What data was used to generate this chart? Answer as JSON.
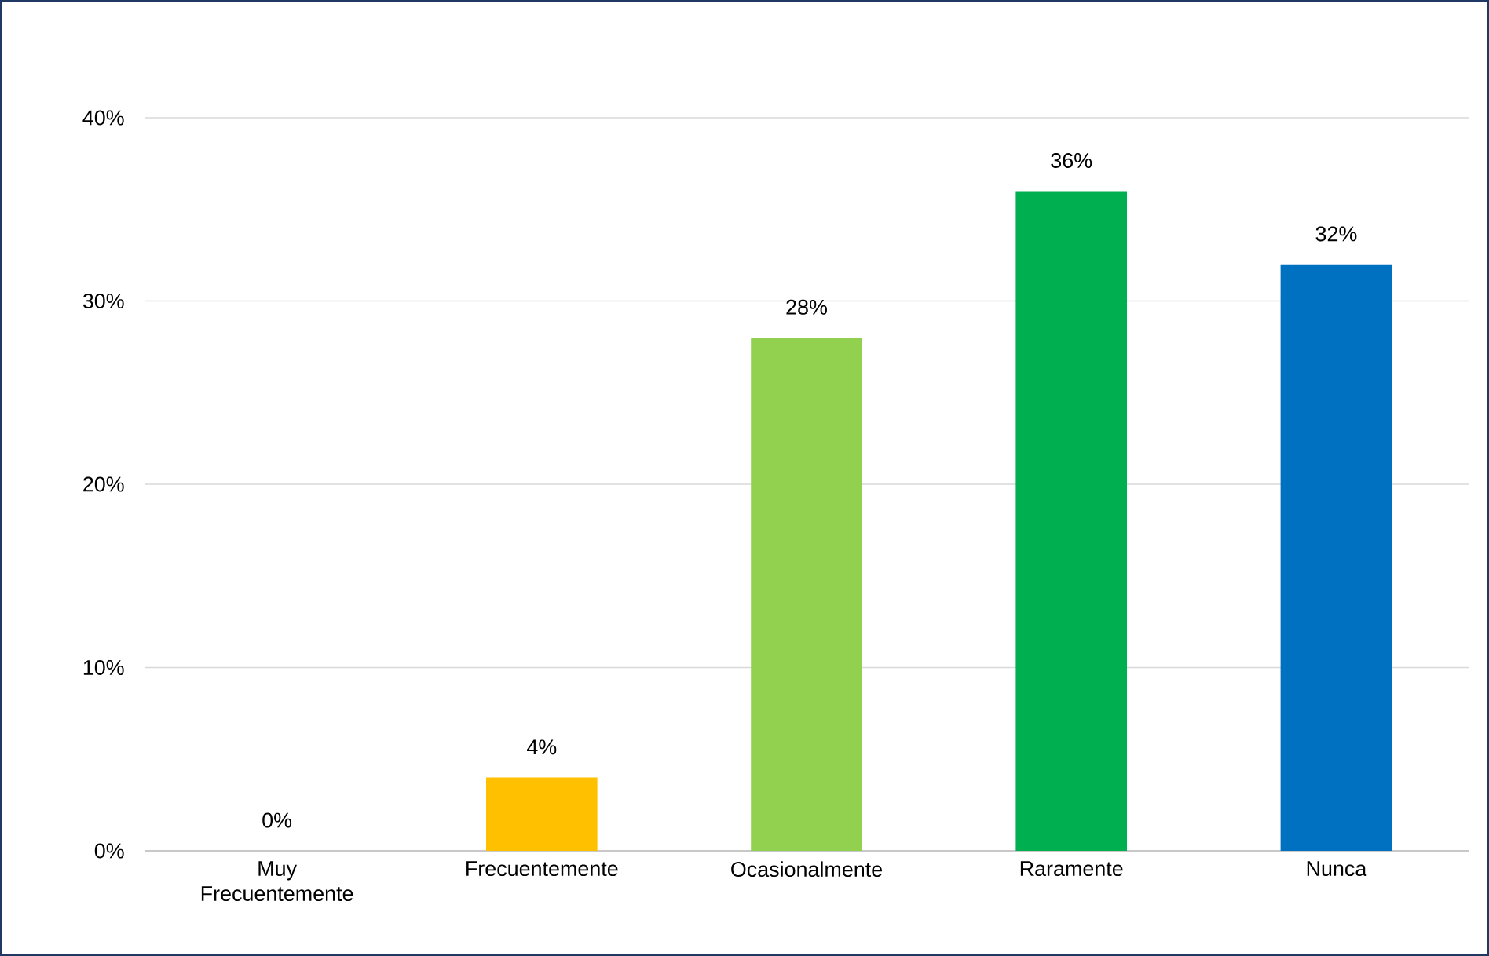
{
  "chart_data": {
    "type": "bar",
    "categories": [
      "Muy Frecuentemente",
      "Frecuentemente",
      "Ocasionalmente",
      "Raramente",
      "Nunca"
    ],
    "values": [
      0,
      4,
      28,
      36,
      32
    ],
    "colors": [
      "#ffc000",
      "#ffc000",
      "#92d050",
      "#00b050",
      "#0070c0"
    ],
    "value_labels": [
      "0%",
      "4%",
      "28%",
      "36%",
      "32%"
    ],
    "ylim": [
      0,
      40
    ],
    "yticks": [
      {
        "value": 0,
        "label": "0%"
      },
      {
        "value": 10,
        "label": "10%"
      },
      {
        "value": 20,
        "label": "20%"
      },
      {
        "value": 30,
        "label": "30%"
      },
      {
        "value": 40,
        "label": "40%"
      }
    ],
    "grid": "y"
  }
}
